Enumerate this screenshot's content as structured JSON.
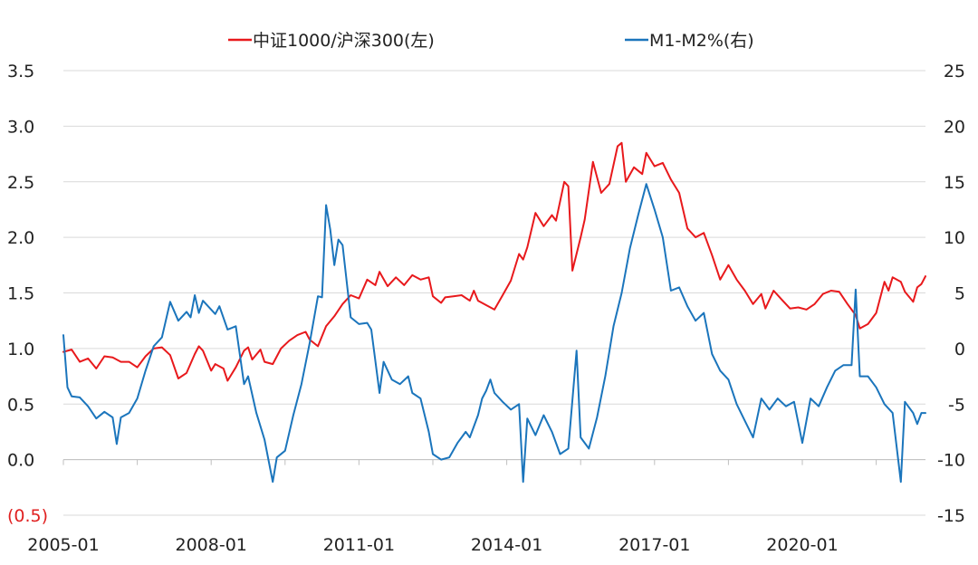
{
  "chart_data": {
    "type": "line",
    "title": "",
    "legend_position": "top-center",
    "grid": "horizontal",
    "colors": {
      "series_left": "#e8191c",
      "series_right": "#1b75bc",
      "grid": "#d9d9d9",
      "negative_label": "#e02020"
    },
    "x_ticks": [
      "2005-01",
      "2008-01",
      "2011-01",
      "2014-01",
      "2017-01",
      "2020-01"
    ],
    "x_range": [
      "2005-01",
      "2022-07"
    ],
    "y_left": {
      "range": [
        -0.5,
        3.5
      ],
      "ticks": [
        "3.5",
        "3.0",
        "2.5",
        "2.0",
        "1.5",
        "1.0",
        "0.5",
        "0.0",
        "(0.5)"
      ]
    },
    "y_right": {
      "range": [
        -15,
        25
      ],
      "ticks": [
        "25",
        "20",
        "15",
        "10",
        "5",
        "0",
        "-5",
        "-10",
        "-15"
      ]
    },
    "series": [
      {
        "name": "中证1000/沪深300(左)",
        "axis": "left",
        "points": [
          [
            "2005-01",
            0.97
          ],
          [
            "2005-03",
            0.99
          ],
          [
            "2005-05",
            0.88
          ],
          [
            "2005-07",
            0.91
          ],
          [
            "2005-09",
            0.82
          ],
          [
            "2005-11",
            0.93
          ],
          [
            "2006-01",
            0.92
          ],
          [
            "2006-03",
            0.88
          ],
          [
            "2006-05",
            0.88
          ],
          [
            "2006-07",
            0.83
          ],
          [
            "2006-09",
            0.93
          ],
          [
            "2006-11",
            1.0
          ],
          [
            "2007-01",
            1.01
          ],
          [
            "2007-03",
            0.94
          ],
          [
            "2007-05",
            0.73
          ],
          [
            "2007-07",
            0.78
          ],
          [
            "2007-09",
            0.95
          ],
          [
            "2007-10",
            1.02
          ],
          [
            "2007-11",
            0.98
          ],
          [
            "2008-01",
            0.8
          ],
          [
            "2008-02",
            0.86
          ],
          [
            "2008-04",
            0.82
          ],
          [
            "2008-05",
            0.71
          ],
          [
            "2008-07",
            0.83
          ],
          [
            "2008-09",
            0.98
          ],
          [
            "2008-10",
            1.01
          ],
          [
            "2008-11",
            0.9
          ],
          [
            "2009-01",
            0.99
          ],
          [
            "2009-02",
            0.88
          ],
          [
            "2009-04",
            0.86
          ],
          [
            "2009-06",
            1.0
          ],
          [
            "2009-08",
            1.07
          ],
          [
            "2009-10",
            1.12
          ],
          [
            "2009-12",
            1.15
          ],
          [
            "2010-01",
            1.08
          ],
          [
            "2010-03",
            1.02
          ],
          [
            "2010-05",
            1.2
          ],
          [
            "2010-07",
            1.29
          ],
          [
            "2010-09",
            1.4
          ],
          [
            "2010-11",
            1.48
          ],
          [
            "2011-01",
            1.45
          ],
          [
            "2011-03",
            1.62
          ],
          [
            "2011-05",
            1.57
          ],
          [
            "2011-06",
            1.69
          ],
          [
            "2011-08",
            1.56
          ],
          [
            "2011-10",
            1.64
          ],
          [
            "2011-12",
            1.57
          ],
          [
            "2012-02",
            1.66
          ],
          [
            "2012-04",
            1.62
          ],
          [
            "2012-06",
            1.64
          ],
          [
            "2012-07",
            1.47
          ],
          [
            "2012-09",
            1.41
          ],
          [
            "2012-10",
            1.46
          ],
          [
            "2012-12",
            1.47
          ],
          [
            "2013-02",
            1.48
          ],
          [
            "2013-04",
            1.43
          ],
          [
            "2013-05",
            1.52
          ],
          [
            "2013-06",
            1.43
          ],
          [
            "2013-08",
            1.39
          ],
          [
            "2013-10",
            1.35
          ],
          [
            "2013-12",
            1.48
          ],
          [
            "2014-02",
            1.61
          ],
          [
            "2014-04",
            1.85
          ],
          [
            "2014-05",
            1.8
          ],
          [
            "2014-06",
            1.91
          ],
          [
            "2014-08",
            2.22
          ],
          [
            "2014-10",
            2.1
          ],
          [
            "2014-12",
            2.2
          ],
          [
            "2015-01",
            2.15
          ],
          [
            "2015-03",
            2.5
          ],
          [
            "2015-04",
            2.46
          ],
          [
            "2015-05",
            1.7
          ],
          [
            "2015-07",
            2.0
          ],
          [
            "2015-08",
            2.16
          ],
          [
            "2015-10",
            2.68
          ],
          [
            "2015-12",
            2.4
          ],
          [
            "2016-02",
            2.48
          ],
          [
            "2016-04",
            2.82
          ],
          [
            "2016-05",
            2.85
          ],
          [
            "2016-06",
            2.5
          ],
          [
            "2016-08",
            2.63
          ],
          [
            "2016-10",
            2.57
          ],
          [
            "2016-11",
            2.76
          ],
          [
            "2017-01",
            2.64
          ],
          [
            "2017-03",
            2.67
          ],
          [
            "2017-05",
            2.52
          ],
          [
            "2017-07",
            2.4
          ],
          [
            "2017-09",
            2.08
          ],
          [
            "2017-11",
            2.0
          ],
          [
            "2018-01",
            2.04
          ],
          [
            "2018-03",
            1.84
          ],
          [
            "2018-05",
            1.62
          ],
          [
            "2018-07",
            1.75
          ],
          [
            "2018-09",
            1.62
          ],
          [
            "2018-11",
            1.52
          ],
          [
            "2019-01",
            1.4
          ],
          [
            "2019-03",
            1.49
          ],
          [
            "2019-04",
            1.36
          ],
          [
            "2019-06",
            1.52
          ],
          [
            "2019-08",
            1.44
          ],
          [
            "2019-10",
            1.36
          ],
          [
            "2019-12",
            1.37
          ],
          [
            "2020-02",
            1.35
          ],
          [
            "2020-04",
            1.4
          ],
          [
            "2020-06",
            1.49
          ],
          [
            "2020-08",
            1.52
          ],
          [
            "2020-10",
            1.51
          ],
          [
            "2020-12",
            1.4
          ],
          [
            "2021-02",
            1.3
          ],
          [
            "2021-03",
            1.18
          ],
          [
            "2021-05",
            1.22
          ],
          [
            "2021-07",
            1.32
          ],
          [
            "2021-09",
            1.6
          ],
          [
            "2021-10",
            1.52
          ],
          [
            "2021-11",
            1.64
          ],
          [
            "2022-01",
            1.6
          ],
          [
            "2022-02",
            1.51
          ],
          [
            "2022-04",
            1.42
          ],
          [
            "2022-05",
            1.55
          ],
          [
            "2022-06",
            1.58
          ],
          [
            "2022-07",
            1.65
          ]
        ]
      },
      {
        "name": "M1-M2%(右)",
        "axis": "right",
        "points": [
          [
            "2005-01",
            1.2
          ],
          [
            "2005-02",
            -3.5
          ],
          [
            "2005-03",
            -4.3
          ],
          [
            "2005-05",
            -4.4
          ],
          [
            "2005-07",
            -5.2
          ],
          [
            "2005-09",
            -6.3
          ],
          [
            "2005-11",
            -5.7
          ],
          [
            "2006-01",
            -6.2
          ],
          [
            "2006-02",
            -8.6
          ],
          [
            "2006-03",
            -6.2
          ],
          [
            "2006-05",
            -5.8
          ],
          [
            "2006-07",
            -4.5
          ],
          [
            "2006-09",
            -2.0
          ],
          [
            "2006-11",
            0.2
          ],
          [
            "2007-01",
            1.0
          ],
          [
            "2007-03",
            4.2
          ],
          [
            "2007-05",
            2.5
          ],
          [
            "2007-07",
            3.3
          ],
          [
            "2007-08",
            2.8
          ],
          [
            "2007-09",
            4.8
          ],
          [
            "2007-10",
            3.2
          ],
          [
            "2007-11",
            4.3
          ],
          [
            "2008-01",
            3.5
          ],
          [
            "2008-02",
            3.1
          ],
          [
            "2008-03",
            3.8
          ],
          [
            "2008-05",
            1.7
          ],
          [
            "2008-07",
            2.0
          ],
          [
            "2008-09",
            -3.2
          ],
          [
            "2008-10",
            -2.5
          ],
          [
            "2008-12",
            -5.8
          ],
          [
            "2009-02",
            -8.2
          ],
          [
            "2009-04",
            -12.0
          ],
          [
            "2009-05",
            -9.8
          ],
          [
            "2009-07",
            -9.2
          ],
          [
            "2009-09",
            -6.0
          ],
          [
            "2009-11",
            -3.2
          ],
          [
            "2010-01",
            0.5
          ],
          [
            "2010-03",
            4.7
          ],
          [
            "2010-04",
            4.6
          ],
          [
            "2010-05",
            12.9
          ],
          [
            "2010-06",
            10.7
          ],
          [
            "2010-07",
            7.5
          ],
          [
            "2010-08",
            9.8
          ],
          [
            "2010-09",
            9.3
          ],
          [
            "2010-11",
            2.8
          ],
          [
            "2011-01",
            2.2
          ],
          [
            "2011-03",
            2.3
          ],
          [
            "2011-04",
            1.7
          ],
          [
            "2011-06",
            -4.0
          ],
          [
            "2011-07",
            -1.2
          ],
          [
            "2011-09",
            -2.8
          ],
          [
            "2011-11",
            -3.2
          ],
          [
            "2012-01",
            -2.5
          ],
          [
            "2012-02",
            -4.0
          ],
          [
            "2012-04",
            -4.5
          ],
          [
            "2012-06",
            -7.5
          ],
          [
            "2012-07",
            -9.5
          ],
          [
            "2012-09",
            -10.0
          ],
          [
            "2012-11",
            -9.8
          ],
          [
            "2013-01",
            -8.5
          ],
          [
            "2013-03",
            -7.5
          ],
          [
            "2013-04",
            -8.0
          ],
          [
            "2013-06",
            -6.0
          ],
          [
            "2013-07",
            -4.5
          ],
          [
            "2013-08",
            -3.8
          ],
          [
            "2013-09",
            -2.8
          ],
          [
            "2013-10",
            -4.0
          ],
          [
            "2013-12",
            -4.8
          ],
          [
            "2014-02",
            -5.5
          ],
          [
            "2014-04",
            -5.0
          ],
          [
            "2014-05",
            -12.0
          ],
          [
            "2014-06",
            -6.3
          ],
          [
            "2014-08",
            -7.8
          ],
          [
            "2014-10",
            -6.0
          ],
          [
            "2014-12",
            -7.5
          ],
          [
            "2015-02",
            -9.5
          ],
          [
            "2015-04",
            -9.0
          ],
          [
            "2015-06",
            -0.2
          ],
          [
            "2015-07",
            -8.0
          ],
          [
            "2015-09",
            -9.0
          ],
          [
            "2015-11",
            -6.2
          ],
          [
            "2016-01",
            -2.5
          ],
          [
            "2016-03",
            2.0
          ],
          [
            "2016-05",
            5.0
          ],
          [
            "2016-07",
            9.0
          ],
          [
            "2016-09",
            12.0
          ],
          [
            "2016-11",
            14.8
          ],
          [
            "2017-01",
            12.5
          ],
          [
            "2017-03",
            10.0
          ],
          [
            "2017-05",
            5.2
          ],
          [
            "2017-07",
            5.5
          ],
          [
            "2017-09",
            3.8
          ],
          [
            "2017-11",
            2.5
          ],
          [
            "2018-01",
            3.2
          ],
          [
            "2018-03",
            -0.5
          ],
          [
            "2018-05",
            -2.0
          ],
          [
            "2018-07",
            -2.8
          ],
          [
            "2018-09",
            -5.0
          ],
          [
            "2018-11",
            -6.5
          ],
          [
            "2019-01",
            -8.0
          ],
          [
            "2019-03",
            -4.5
          ],
          [
            "2019-05",
            -5.5
          ],
          [
            "2019-07",
            -4.5
          ],
          [
            "2019-09",
            -5.2
          ],
          [
            "2019-11",
            -4.8
          ],
          [
            "2020-01",
            -8.5
          ],
          [
            "2020-03",
            -4.5
          ],
          [
            "2020-05",
            -5.2
          ],
          [
            "2020-07",
            -3.5
          ],
          [
            "2020-09",
            -2.0
          ],
          [
            "2020-11",
            -1.5
          ],
          [
            "2021-01",
            -1.5
          ],
          [
            "2021-02",
            5.3
          ],
          [
            "2021-03",
            -2.5
          ],
          [
            "2021-05",
            -2.5
          ],
          [
            "2021-07",
            -3.5
          ],
          [
            "2021-09",
            -5.0
          ],
          [
            "2021-11",
            -5.8
          ],
          [
            "2022-01",
            -12.0
          ],
          [
            "2022-02",
            -4.8
          ],
          [
            "2022-04",
            -5.8
          ],
          [
            "2022-05",
            -6.8
          ],
          [
            "2022-06",
            -5.8
          ],
          [
            "2022-07",
            -5.8
          ]
        ]
      }
    ]
  }
}
